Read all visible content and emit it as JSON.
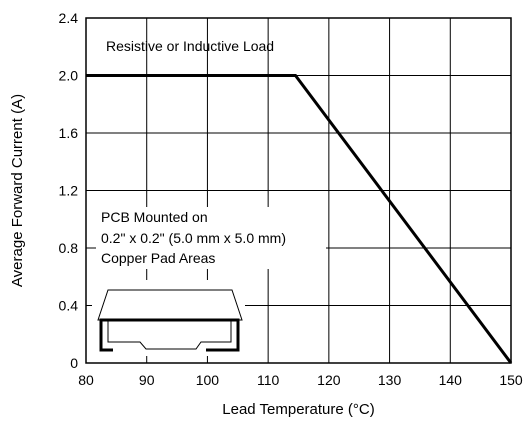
{
  "chart_data": {
    "type": "line",
    "title": "",
    "xlabel": "Lead Temperature (°C)",
    "ylabel": "Average Forward Current (A)",
    "xlim": [
      80,
      150
    ],
    "ylim": [
      0,
      2.4
    ],
    "x_ticks": [
      80,
      90,
      100,
      110,
      120,
      130,
      140,
      150
    ],
    "x_tick_labels": [
      "80",
      "90",
      "100",
      "110",
      "120",
      "130",
      "140",
      "150"
    ],
    "y_ticks": [
      0,
      0.4,
      0.8,
      1.2,
      1.6,
      2.0,
      2.4
    ],
    "y_tick_labels": [
      "0",
      "0.4",
      "0.8",
      "1.2",
      "1.6",
      "2.0",
      "2.4"
    ],
    "grid": true,
    "series": [
      {
        "x": [
          80,
          114.5,
          150
        ],
        "y": [
          2.0,
          2.0,
          0
        ]
      }
    ],
    "annotations": {
      "load_note": "Resistive or Inductive Load",
      "pcb_note": [
        "PCB Mounted on",
        "0.2\" x 0.2\" (5.0 mm x 5.0 mm)",
        "Copper Pad Areas"
      ]
    }
  }
}
